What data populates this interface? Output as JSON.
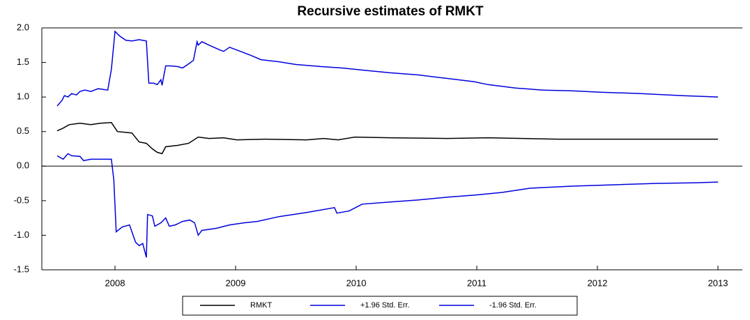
{
  "chart_data": {
    "type": "line",
    "title": "Recursive estimates of RMKT",
    "xlim": [
      2007.393,
      2013.202
    ],
    "ylim": [
      -1.5,
      2.0
    ],
    "xticks": [
      2008,
      2009,
      2010,
      2011,
      2012,
      2013
    ],
    "yticks": [
      {
        "value": -1.5,
        "label": "-1.5"
      },
      {
        "value": -1,
        "label": "-1.0"
      },
      {
        "value": -0.5,
        "label": "-0.5"
      },
      {
        "value": 0,
        "label": "0.0"
      },
      {
        "value": 0.5,
        "label": "0.5"
      },
      {
        "value": 1,
        "label": "1.0"
      },
      {
        "value": 1.5,
        "label": "1.5"
      },
      {
        "value": 2,
        "label": "2.0"
      }
    ],
    "legend": "bottom",
    "series": [
      {
        "name": "RMKT",
        "color": "#000000",
        "x": [
          2007.52,
          2007.57,
          2007.62,
          2007.71,
          2007.8,
          2007.88,
          2007.97,
          2008.02,
          2008.14,
          2008.2,
          2008.26,
          2008.31,
          2008.35,
          2008.39,
          2008.42,
          2008.52,
          2008.61,
          2008.69,
          2008.78,
          2008.9,
          2009.01,
          2009.24,
          2009.59,
          2009.73,
          2009.85,
          2009.99,
          2010.28,
          2010.75,
          2011.09,
          2011.67,
          2012.25,
          2013.0
        ],
        "values": [
          0.51,
          0.55,
          0.6,
          0.62,
          0.6,
          0.62,
          0.63,
          0.5,
          0.48,
          0.35,
          0.33,
          0.25,
          0.2,
          0.18,
          0.28,
          0.3,
          0.33,
          0.42,
          0.4,
          0.41,
          0.38,
          0.39,
          0.38,
          0.4,
          0.38,
          0.42,
          0.41,
          0.4,
          0.41,
          0.39,
          0.39,
          0.39
        ]
      },
      {
        "name": "+1.96 Std. Err.",
        "color": "#0000dd",
        "x": [
          2007.52,
          2007.56,
          2007.58,
          2007.61,
          2007.64,
          2007.68,
          2007.71,
          2007.75,
          2007.8,
          2007.86,
          2007.94,
          2007.97,
          2008.0,
          2008.04,
          2008.09,
          2008.14,
          2008.2,
          2008.26,
          2008.28,
          2008.32,
          2008.35,
          2008.38,
          2008.39,
          2008.42,
          2008.46,
          2008.52,
          2008.56,
          2008.61,
          2008.65,
          2008.68,
          2008.69,
          2008.72,
          2008.78,
          2008.87,
          2008.9,
          2008.95,
          2009.04,
          2009.13,
          2009.21,
          2009.36,
          2009.5,
          2009.71,
          2009.88,
          2010.05,
          2010.28,
          2010.51,
          2010.75,
          2010.98,
          2011.09,
          2011.32,
          2011.55,
          2011.79,
          2012.02,
          2012.36,
          2012.71,
          2013.0
        ],
        "values": [
          0.87,
          0.95,
          1.02,
          1.0,
          1.05,
          1.03,
          1.08,
          1.1,
          1.08,
          1.12,
          1.1,
          1.4,
          1.95,
          1.88,
          1.82,
          1.81,
          1.83,
          1.81,
          1.2,
          1.2,
          1.18,
          1.25,
          1.17,
          1.45,
          1.45,
          1.44,
          1.42,
          1.48,
          1.53,
          1.8,
          1.75,
          1.8,
          1.75,
          1.68,
          1.66,
          1.72,
          1.66,
          1.6,
          1.54,
          1.51,
          1.47,
          1.44,
          1.42,
          1.39,
          1.35,
          1.32,
          1.27,
          1.22,
          1.18,
          1.13,
          1.1,
          1.09,
          1.07,
          1.05,
          1.02,
          1.0
        ]
      },
      {
        "name": "-1.96 Std. Err.",
        "color": "#0000dd",
        "x": [
          2007.52,
          2007.57,
          2007.61,
          2007.64,
          2007.71,
          2007.74,
          2007.8,
          2007.97,
          2007.99,
          2008.01,
          2008.06,
          2008.12,
          2008.17,
          2008.2,
          2008.23,
          2008.26,
          2008.27,
          2008.31,
          2008.33,
          2008.38,
          2008.42,
          2008.45,
          2008.5,
          2008.56,
          2008.62,
          2008.66,
          2008.69,
          2008.72,
          2008.84,
          2008.95,
          2009.07,
          2009.18,
          2009.36,
          2009.59,
          2009.82,
          2009.84,
          2009.94,
          2010.05,
          2010.28,
          2010.51,
          2010.75,
          2010.98,
          2011.21,
          2011.44,
          2011.79,
          2012.13,
          2012.48,
          2012.83,
          2013.0
        ],
        "values": [
          0.15,
          0.1,
          0.18,
          0.15,
          0.14,
          0.08,
          0.1,
          0.1,
          -0.2,
          -0.95,
          -0.88,
          -0.85,
          -1.1,
          -1.15,
          -1.12,
          -1.32,
          -0.7,
          -0.72,
          -0.87,
          -0.82,
          -0.75,
          -0.87,
          -0.85,
          -0.8,
          -0.78,
          -0.82,
          -1.0,
          -0.93,
          -0.9,
          -0.85,
          -0.82,
          -0.8,
          -0.73,
          -0.67,
          -0.6,
          -0.68,
          -0.65,
          -0.55,
          -0.52,
          -0.49,
          -0.45,
          -0.42,
          -0.38,
          -0.32,
          -0.29,
          -0.27,
          -0.25,
          -0.24,
          -0.23
        ]
      }
    ]
  }
}
